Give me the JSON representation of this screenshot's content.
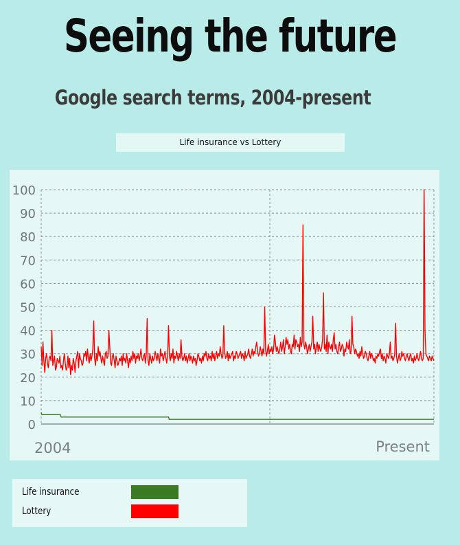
{
  "header": {
    "title": "Seeing the future",
    "subtitle": "Google search terms, 2004-present"
  },
  "chart_label": "Life insurance vs Lottery",
  "legend": {
    "items": [
      {
        "label": "Life insurance",
        "color": "#3a7a23"
      },
      {
        "label": "Lottery",
        "color": "#ff0000"
      }
    ]
  },
  "chart_data": {
    "type": "line",
    "title": "Life insurance vs Lottery",
    "x_start_label": "2004",
    "x_end_label": "Present",
    "ylim": [
      0,
      100
    ],
    "yticks": [
      0,
      10,
      20,
      30,
      40,
      50,
      60,
      70,
      80,
      90,
      100
    ],
    "grid": true,
    "legend_position": "bottom-left",
    "series": [
      {
        "name": "Life insurance",
        "color": "#3a7a23",
        "values": [
          5,
          4,
          4,
          4,
          4,
          4,
          4,
          4,
          4,
          4,
          4,
          4,
          4,
          4,
          4,
          4,
          4,
          4,
          4,
          4,
          4,
          4,
          4,
          4,
          4,
          4,
          4,
          4,
          3,
          3,
          3,
          3,
          3,
          3,
          3,
          3,
          3,
          3,
          3,
          3,
          3,
          3,
          3,
          3,
          3,
          3,
          3,
          3,
          3,
          3,
          3,
          3,
          3,
          3,
          3,
          3,
          3,
          3,
          3,
          3,
          3,
          3,
          3,
          3,
          3,
          3,
          3,
          3,
          3,
          3,
          3,
          3,
          3,
          3,
          3,
          3,
          3,
          3,
          3,
          3,
          3,
          3,
          3,
          3,
          3,
          3,
          3,
          3,
          3,
          3,
          3,
          3,
          3,
          3,
          3,
          3,
          3,
          3,
          3,
          3,
          3,
          3,
          3,
          3,
          3,
          3,
          3,
          3,
          3,
          3,
          3,
          3,
          3,
          3,
          3,
          3,
          3,
          3,
          3,
          3,
          3,
          3,
          3,
          3,
          3,
          3,
          3,
          3,
          3,
          3,
          3,
          3,
          3,
          3,
          3,
          3,
          3,
          3,
          3,
          3,
          3,
          3,
          3,
          3,
          3,
          3,
          3,
          3,
          3,
          3,
          3,
          3,
          3,
          3,
          3,
          3,
          3,
          3,
          3,
          3,
          3,
          3,
          3,
          3,
          3,
          3,
          3,
          3,
          3,
          3,
          3,
          3,
          3,
          3,
          3,
          3,
          3,
          3,
          3,
          3,
          2,
          2,
          2,
          2,
          2,
          2,
          2,
          2,
          2,
          2,
          2,
          2,
          2,
          2,
          2,
          2,
          2,
          2,
          2,
          2,
          2,
          2,
          2,
          2,
          2,
          2,
          2,
          2,
          2,
          2,
          2,
          2,
          2,
          2,
          2,
          2,
          2,
          2,
          2,
          2,
          2,
          2,
          2,
          2,
          2,
          2,
          2,
          2,
          2,
          2,
          2,
          2,
          2,
          2,
          2,
          2,
          2,
          2,
          2,
          2,
          2,
          2,
          2,
          2,
          2,
          2,
          2,
          2,
          2,
          2,
          2,
          2,
          2,
          2,
          2,
          2,
          2,
          2,
          2,
          2,
          2,
          2,
          2,
          2,
          2,
          2,
          2,
          2,
          2,
          2,
          2,
          2,
          2,
          2,
          2,
          2,
          2,
          2,
          2,
          2,
          2,
          2,
          2,
          2,
          2,
          2,
          2,
          2,
          2,
          2,
          2,
          2,
          2,
          2,
          2,
          2,
          2,
          2,
          2,
          2,
          2,
          2,
          2,
          2,
          2,
          2,
          2,
          2,
          2,
          2,
          2,
          2,
          2,
          2,
          2,
          2,
          2,
          2,
          2,
          2,
          2,
          2,
          2,
          2,
          2,
          2,
          2,
          2,
          2,
          2,
          2,
          2,
          2,
          2,
          2,
          2,
          2,
          2,
          2,
          2,
          2,
          2,
          2,
          2,
          2,
          2,
          2,
          2,
          2,
          2,
          2,
          2,
          2,
          2,
          2,
          2,
          2,
          2,
          2,
          2,
          2,
          2,
          2,
          2,
          2,
          2,
          2,
          2,
          2,
          2,
          2,
          2,
          2,
          2,
          2,
          2,
          2,
          2,
          2,
          2,
          2,
          2,
          2,
          2,
          2,
          2,
          2,
          2,
          2,
          2,
          2,
          2,
          2,
          2,
          2,
          2,
          2,
          2,
          2,
          2,
          2,
          2,
          2,
          2,
          2,
          2,
          2,
          2,
          2,
          2,
          2,
          2,
          2,
          2,
          2,
          2,
          2,
          2,
          2,
          2,
          2,
          2,
          2,
          2,
          2,
          2,
          2,
          2,
          2,
          2,
          2,
          2,
          2,
          2,
          2,
          2,
          2,
          2,
          2,
          2,
          2,
          2,
          2,
          2,
          2,
          2,
          2,
          2,
          2,
          2,
          2,
          2,
          2,
          2,
          2,
          2,
          2,
          2,
          2,
          2,
          2,
          2,
          2,
          2,
          2,
          2,
          2,
          2,
          2,
          2,
          2,
          2,
          2,
          2,
          2,
          2,
          2,
          2,
          2,
          2,
          2,
          2,
          2,
          2,
          2,
          2,
          2,
          2,
          2,
          2,
          2,
          2,
          2,
          2,
          2,
          2,
          2,
          2,
          2,
          2,
          2,
          2,
          2,
          2,
          2,
          2,
          2,
          2,
          2,
          2,
          2,
          2,
          2,
          2,
          2,
          2,
          2,
          2,
          2,
          2,
          2,
          2,
          2,
          2,
          2,
          2,
          2,
          2,
          2,
          2,
          2,
          2,
          2,
          2,
          2,
          2,
          2,
          2,
          2,
          2,
          2,
          2,
          2,
          2,
          2,
          2,
          2,
          2,
          2,
          2,
          2,
          2,
          2
        ]
      },
      {
        "name": "Lottery",
        "color": "#ff0000",
        "values": [
          33,
          25,
          35,
          27,
          22,
          28,
          30,
          26,
          24,
          28,
          29,
          27,
          40,
          25,
          27,
          29,
          23,
          24,
          28,
          27,
          26,
          29,
          24,
          25,
          23,
          27,
          30,
          26,
          23,
          24,
          29,
          24,
          28,
          21,
          25,
          23,
          28,
          26,
          22,
          27,
          29,
          31,
          24,
          30,
          28,
          27,
          25,
          26,
          30,
          29,
          31,
          27,
          32,
          28,
          26,
          30,
          27,
          29,
          32,
          44,
          28,
          25,
          30,
          27,
          33,
          29,
          31,
          28,
          26,
          29,
          27,
          25,
          30,
          31,
          28,
          29,
          40,
          33,
          26,
          25,
          29,
          30,
          27,
          24,
          29,
          27,
          25,
          26,
          28,
          27,
          29,
          25,
          30,
          27,
          28,
          26,
          30,
          27,
          24,
          28,
          26,
          29,
          27,
          31,
          28,
          30,
          26,
          29,
          28,
          30,
          27,
          29,
          32,
          28,
          27,
          29,
          30,
          26,
          30,
          45,
          27,
          25,
          30,
          28,
          26,
          29,
          27,
          28,
          31,
          29,
          27,
          30,
          28,
          26,
          32,
          29,
          30,
          27,
          29,
          31,
          28,
          26,
          30,
          42,
          29,
          27,
          30,
          28,
          32,
          26,
          29,
          28,
          31,
          29,
          27,
          30,
          28,
          36,
          29,
          27,
          28,
          30,
          27,
          29,
          26,
          28,
          30,
          27,
          29,
          28,
          26,
          29,
          27,
          28,
          25,
          27,
          30,
          29,
          27,
          28,
          26,
          29,
          27,
          30,
          29,
          31,
          28,
          27,
          30,
          28,
          29,
          27,
          31,
          28,
          30,
          27,
          29,
          31,
          28,
          30,
          29,
          33,
          30,
          28,
          29,
          42,
          31,
          28,
          29,
          31,
          27,
          30,
          28,
          29,
          30,
          31,
          27,
          29,
          28,
          31,
          30,
          28,
          29,
          30,
          31,
          28,
          30,
          29,
          27,
          31,
          28,
          29,
          30,
          32,
          29,
          28,
          30,
          32,
          29,
          31,
          30,
          33,
          35,
          31,
          29,
          30,
          33,
          31,
          29,
          32,
          30,
          50,
          32,
          29,
          31,
          34,
          30,
          32,
          31,
          33,
          30,
          32,
          38,
          35,
          31,
          33,
          31,
          30,
          32,
          35,
          31,
          33,
          36,
          30,
          33,
          37,
          34,
          36,
          32,
          34,
          31,
          30,
          34,
          33,
          38,
          32,
          36,
          35,
          33,
          34,
          31,
          37,
          33,
          35,
          85,
          34,
          32,
          35,
          33,
          30,
          32,
          34,
          31,
          33,
          35,
          46,
          32,
          34,
          30,
          33,
          35,
          31,
          34,
          32,
          31,
          33,
          36,
          56,
          32,
          34,
          31,
          38,
          30,
          35,
          33,
          32,
          34,
          31,
          36,
          39,
          32,
          34,
          31,
          30,
          33,
          35,
          31,
          32,
          34,
          33,
          29,
          32,
          31,
          35,
          33,
          32,
          36,
          30,
          31,
          46,
          34,
          33,
          30,
          32,
          31,
          29,
          30,
          28,
          31,
          29,
          33,
          30,
          28,
          29,
          31,
          30,
          28,
          27,
          29,
          31,
          28,
          30,
          29,
          27,
          28,
          26,
          29,
          28,
          30,
          29,
          31,
          32,
          28,
          30,
          27,
          29,
          28,
          26,
          30,
          29,
          28,
          30,
          35,
          28,
          29,
          27,
          28,
          30,
          43,
          29,
          26,
          28,
          30,
          27,
          28,
          31,
          29,
          30,
          28,
          27,
          29,
          30,
          28,
          27,
          29,
          30,
          27,
          28,
          26,
          29,
          27,
          28,
          30,
          28,
          27,
          29,
          31,
          28,
          27,
          28,
          100,
          40,
          30,
          29,
          28,
          27,
          29,
          28,
          27,
          29,
          28,
          27
        ]
      }
    ]
  }
}
